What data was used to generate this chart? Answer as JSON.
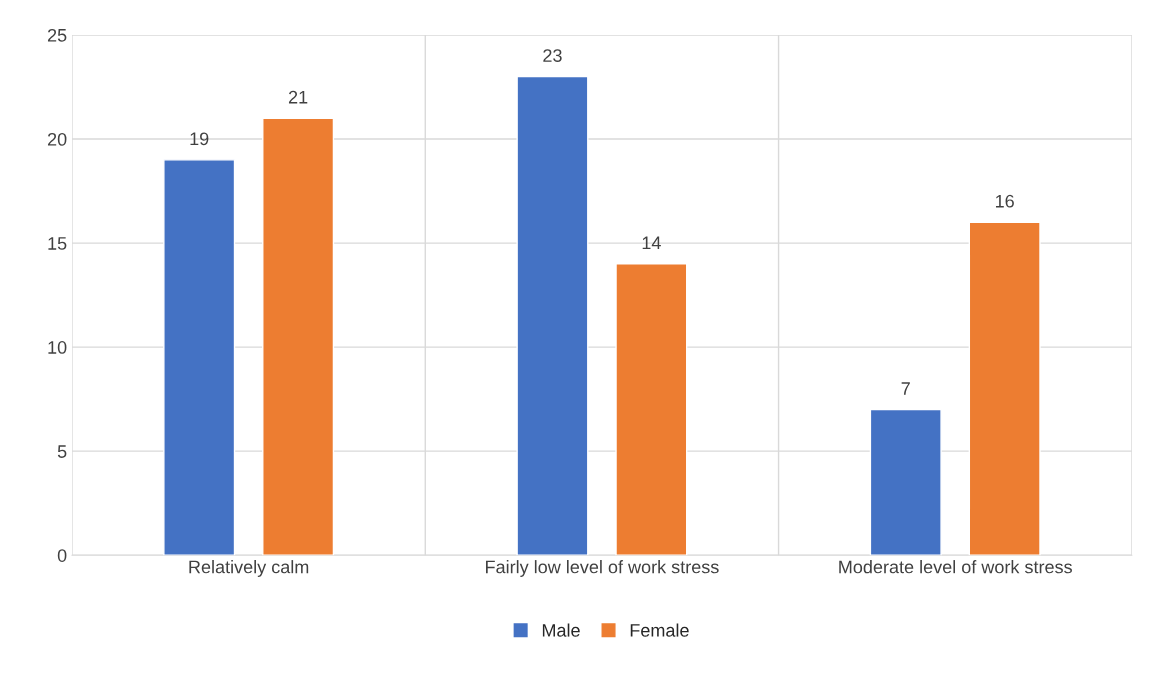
{
  "chart_data": {
    "type": "bar",
    "categories": [
      "Relatively calm",
      "Fairly low level of work stress",
      "Moderate level of work stress"
    ],
    "series": [
      {
        "name": "Male",
        "color": "#4472c4",
        "values": [
          19,
          23,
          7
        ]
      },
      {
        "name": "Female",
        "color": "#ed7d31",
        "values": [
          21,
          14,
          16
        ]
      }
    ],
    "ylim": [
      0,
      25
    ],
    "yticks": [
      0,
      5,
      10,
      15,
      20,
      25
    ],
    "grid": true,
    "legend": "bottom",
    "data_labels": true
  }
}
